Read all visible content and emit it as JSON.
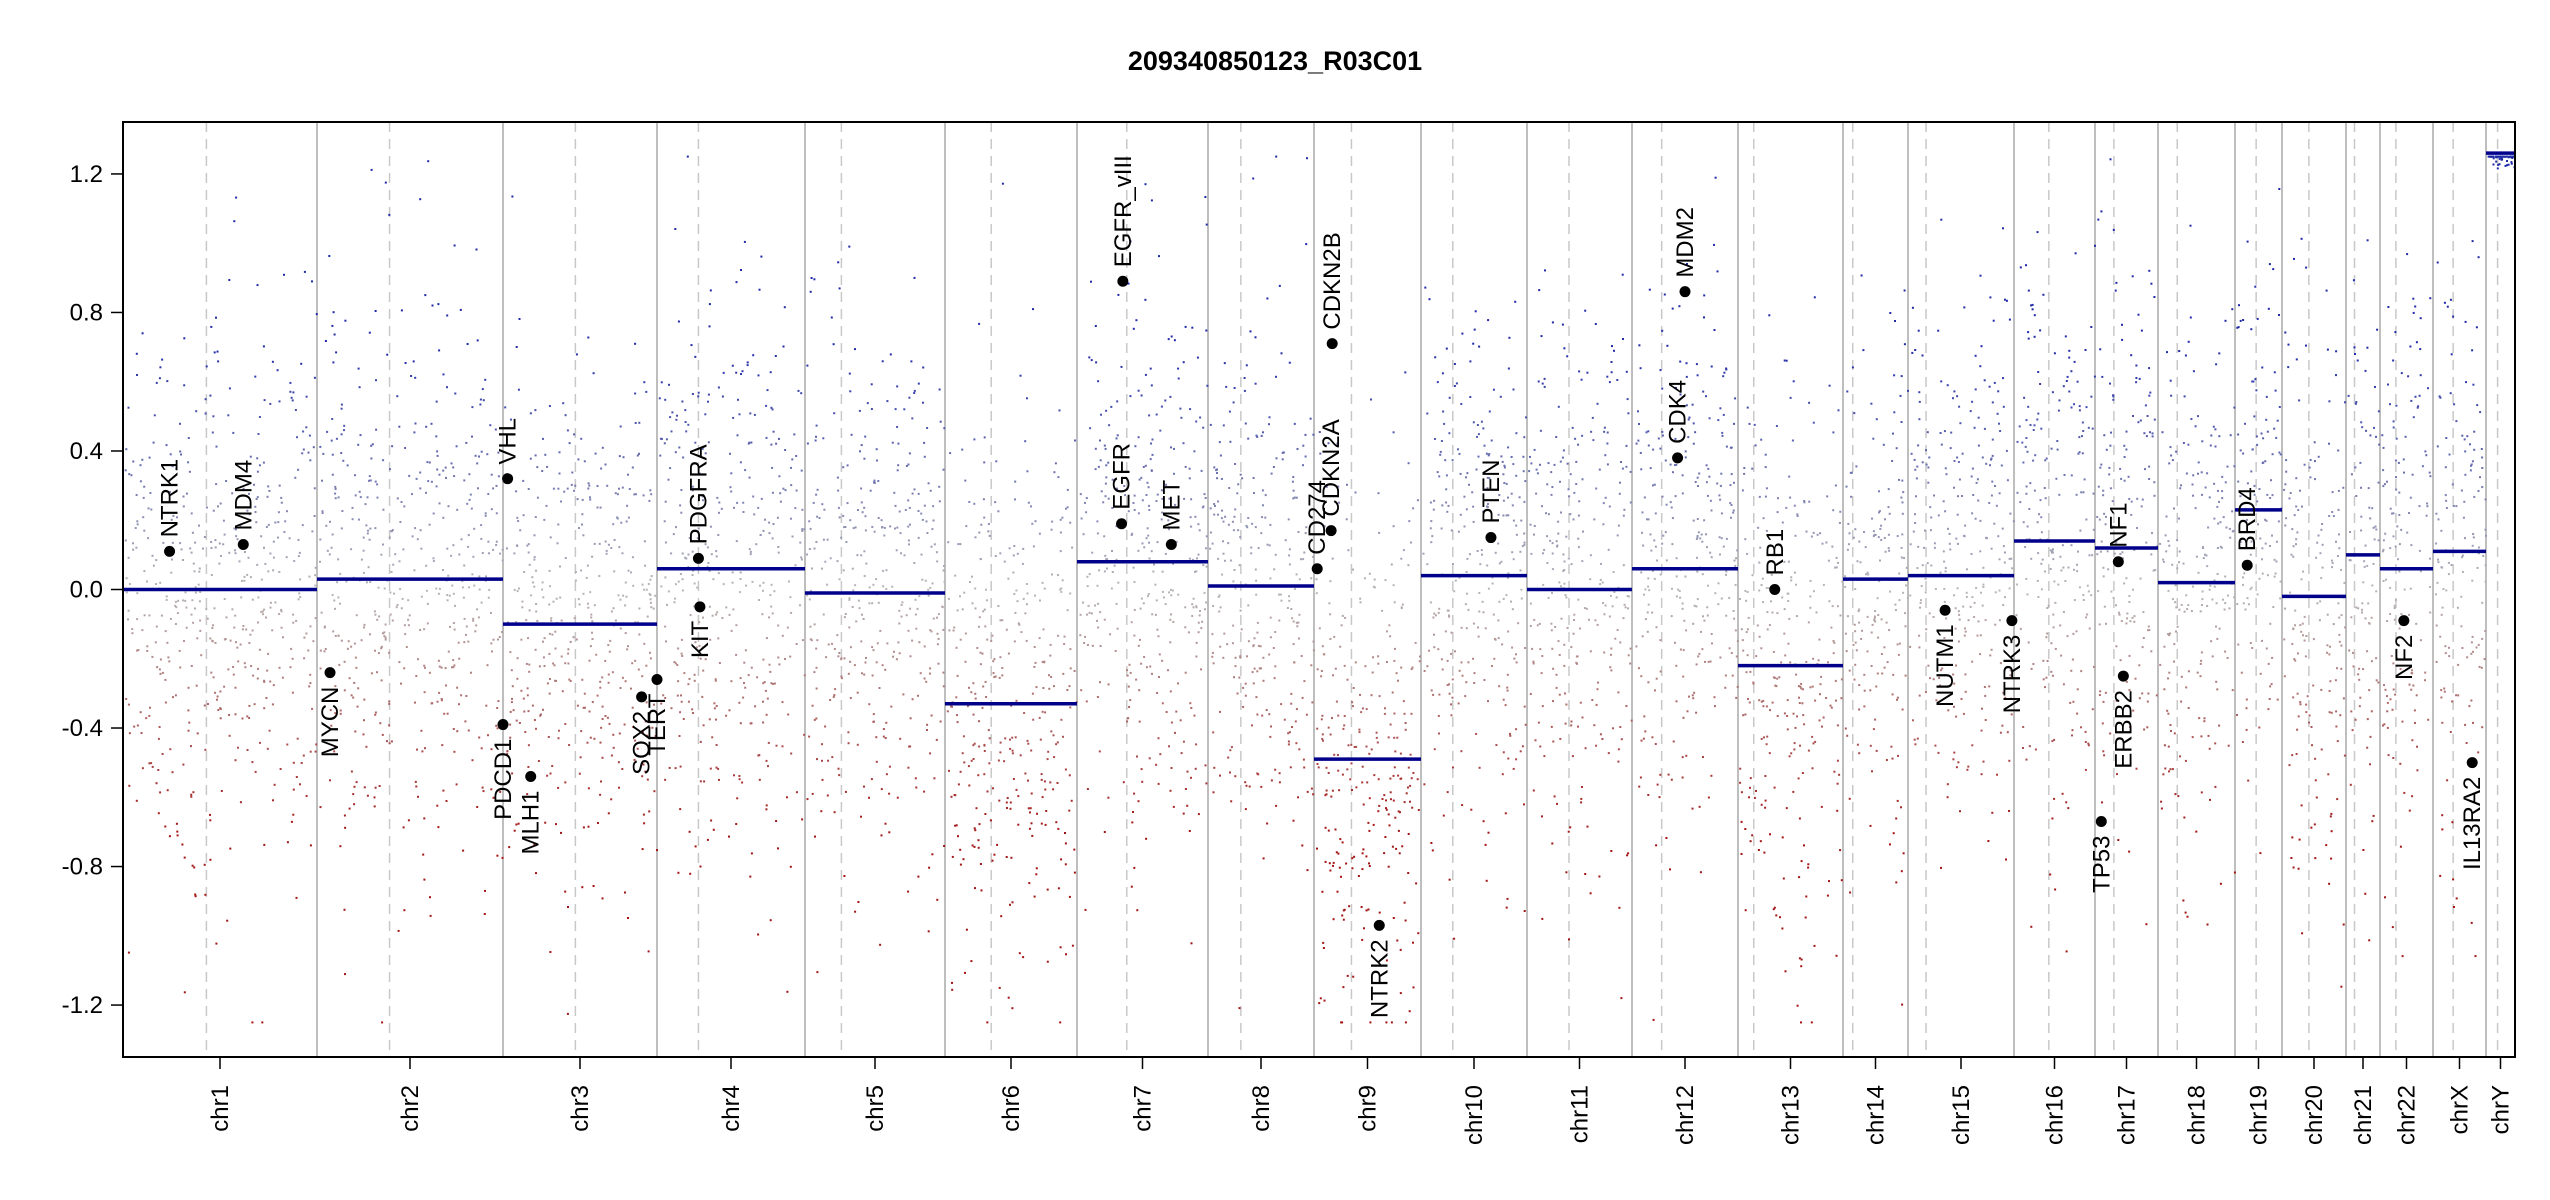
{
  "chart_data": {
    "type": "scatter",
    "title": "209340850123_R03C01",
    "xlabel": "",
    "ylabel": "",
    "ylim": [
      -1.35,
      1.35
    ],
    "y_ticks": [
      -1.2,
      -0.8,
      -0.4,
      0.0,
      0.4,
      0.8,
      1.2
    ],
    "y_tick_labels": [
      "-1.2",
      "-0.8",
      "-0.4",
      "0.0",
      "0.4",
      "0.8",
      "1.2"
    ],
    "grid": false,
    "legend": "none",
    "colors": {
      "gain": "#1f2aa8",
      "loss": "#a31515",
      "neutral": "#b7b7b7",
      "segment": "#00008b",
      "gene": "#000000",
      "divider": "#a9a9a9"
    },
    "chromosomes": [
      {
        "name": "chr1",
        "segment": 0.0,
        "noise": 0.38,
        "centromere": 0.43
      },
      {
        "name": "chr2",
        "segment": 0.03,
        "noise": 0.38,
        "centromere": 0.39
      },
      {
        "name": "chr3",
        "segment": -0.1,
        "noise": 0.36,
        "centromere": 0.47
      },
      {
        "name": "chr4",
        "segment": 0.06,
        "noise": 0.38,
        "centromere": 0.28
      },
      {
        "name": "chr5",
        "segment": -0.01,
        "noise": 0.38,
        "centromere": 0.26
      },
      {
        "name": "chr6",
        "segment": -0.33,
        "noise": 0.4,
        "centromere": 0.35
      },
      {
        "name": "chr7",
        "segment": 0.08,
        "noise": 0.38,
        "centromere": 0.38
      },
      {
        "name": "chr8",
        "segment": 0.01,
        "noise": 0.38,
        "centromere": 0.31
      },
      {
        "name": "chr9",
        "segment": -0.49,
        "noise": 0.4,
        "centromere": 0.35
      },
      {
        "name": "chr10",
        "segment": 0.04,
        "noise": 0.38,
        "centromere": 0.3
      },
      {
        "name": "chr11",
        "segment": 0.0,
        "noise": 0.38,
        "centromere": 0.4
      },
      {
        "name": "chr12",
        "segment": 0.06,
        "noise": 0.38,
        "centromere": 0.28
      },
      {
        "name": "chr13",
        "segment": -0.22,
        "noise": 0.38,
        "centromere": 0.15
      },
      {
        "name": "chr14",
        "segment": 0.03,
        "noise": 0.38,
        "centromere": 0.15
      },
      {
        "name": "chr15",
        "segment": 0.04,
        "noise": 0.38,
        "centromere": 0.17
      },
      {
        "name": "chr16",
        "segment": 0.14,
        "noise": 0.38,
        "centromere": 0.43
      },
      {
        "name": "chr17",
        "segment": 0.12,
        "noise": 0.38,
        "centromere": 0.3
      },
      {
        "name": "chr18",
        "segment": 0.02,
        "noise": 0.38,
        "centromere": 0.25
      },
      {
        "name": "chr19",
        "segment": 0.23,
        "noise": 0.38,
        "centromere": 0.45
      },
      {
        "name": "chr20",
        "segment": -0.02,
        "noise": 0.38,
        "centromere": 0.42
      },
      {
        "name": "chr21",
        "segment": 0.1,
        "noise": 0.38,
        "centromere": 0.25
      },
      {
        "name": "chr22",
        "segment": 0.06,
        "noise": 0.38,
        "centromere": 0.3
      },
      {
        "name": "chrX",
        "segment": 0.11,
        "noise": 0.38,
        "centromere": 0.38
      },
      {
        "name": "chrY",
        "segment": 1.26,
        "noise": 0.02,
        "centromere": 0.4
      }
    ],
    "genes": [
      {
        "name": "NTRK1",
        "chr": "chr1",
        "pos": 0.24,
        "value": 0.11
      },
      {
        "name": "MDM4",
        "chr": "chr1",
        "pos": 0.62,
        "value": 0.13
      },
      {
        "name": "MYCN",
        "chr": "chr2",
        "pos": 0.07,
        "value": -0.24
      },
      {
        "name": "VHL",
        "chr": "chr3",
        "pos": 0.03,
        "value": 0.32
      },
      {
        "name": "PDCD1",
        "chr": "chr3",
        "pos": 0.0,
        "value": -0.39
      },
      {
        "name": "MLH1",
        "chr": "chr3",
        "pos": 0.18,
        "value": -0.54
      },
      {
        "name": "SOX2",
        "chr": "chr3",
        "pos": 0.9,
        "value": -0.31
      },
      {
        "name": "TERT",
        "chr": "chr4",
        "pos": 0.0,
        "value": -0.26
      },
      {
        "name": "PDGFRA",
        "chr": "chr4",
        "pos": 0.28,
        "value": 0.09
      },
      {
        "name": "KIT",
        "chr": "chr4",
        "pos": 0.29,
        "value": -0.05
      },
      {
        "name": "EGFR",
        "chr": "chr7",
        "pos": 0.34,
        "value": 0.19
      },
      {
        "name": "EGFR_vIII",
        "chr": "chr7",
        "pos": 0.35,
        "value": 0.89
      },
      {
        "name": "MET",
        "chr": "chr7",
        "pos": 0.72,
        "value": 0.13
      },
      {
        "name": "CDKN2B",
        "chr": "chr9",
        "pos": 0.17,
        "value": 0.71
      },
      {
        "name": "CDKN2A",
        "chr": "chr9",
        "pos": 0.16,
        "value": 0.17
      },
      {
        "name": "CD274",
        "chr": "chr9",
        "pos": 0.03,
        "value": 0.06
      },
      {
        "name": "NTRK2",
        "chr": "chr9",
        "pos": 0.61,
        "value": -0.97
      },
      {
        "name": "PTEN",
        "chr": "chr10",
        "pos": 0.66,
        "value": 0.15
      },
      {
        "name": "CDK4",
        "chr": "chr12",
        "pos": 0.43,
        "value": 0.38
      },
      {
        "name": "MDM2",
        "chr": "chr12",
        "pos": 0.5,
        "value": 0.86
      },
      {
        "name": "RB1",
        "chr": "chr13",
        "pos": 0.35,
        "value": 0.0
      },
      {
        "name": "NUTM1",
        "chr": "chr15",
        "pos": 0.35,
        "value": -0.06
      },
      {
        "name": "NTRK3",
        "chr": "chr15",
        "pos": 0.98,
        "value": -0.09
      },
      {
        "name": "TP53",
        "chr": "chr17",
        "pos": 0.1,
        "value": -0.67
      },
      {
        "name": "NF1",
        "chr": "chr17",
        "pos": 0.37,
        "value": 0.08
      },
      {
        "name": "ERBB2",
        "chr": "chr17",
        "pos": 0.45,
        "value": -0.25
      },
      {
        "name": "BRD4",
        "chr": "chr19",
        "pos": 0.26,
        "value": 0.07
      },
      {
        "name": "NF2",
        "chr": "chr22",
        "pos": 0.45,
        "value": -0.09
      },
      {
        "name": "IL13RA2",
        "chr": "chrX",
        "pos": 0.74,
        "value": -0.5
      }
    ]
  }
}
